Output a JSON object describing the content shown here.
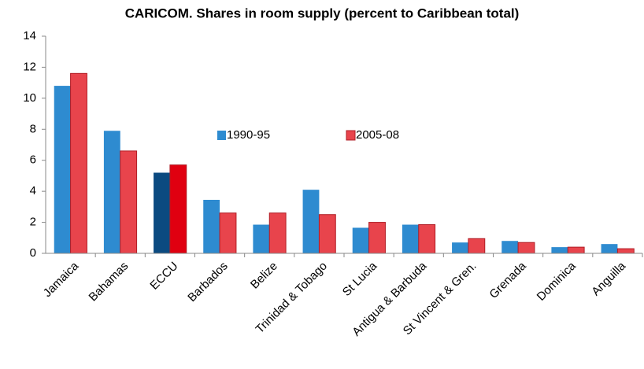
{
  "chart_data": {
    "type": "bar",
    "title": "CARICOM. Shares in room supply (percent to Caribbean total)",
    "categories": [
      "Jamaica",
      "Bahamas",
      "ECCU",
      "Barbados",
      "Belize",
      "Trinidad & Tobago",
      "St Lucia",
      "Antigua & Barbuda",
      "St Vincent & Gren.",
      "Grenada",
      "Dominica",
      "Anguilla"
    ],
    "series": [
      {
        "name": "1990-95",
        "color": "#2e8bd0",
        "point_colors": [
          "#2e8bd0",
          "#2e8bd0",
          "#0b4a80",
          "#2e8bd0",
          "#2e8bd0",
          "#2e8bd0",
          "#2e8bd0",
          "#2e8bd0",
          "#2e8bd0",
          "#2e8bd0",
          "#2e8bd0",
          "#2e8bd0"
        ],
        "values": [
          10.8,
          7.9,
          5.2,
          3.45,
          1.85,
          4.1,
          1.65,
          1.85,
          0.7,
          0.8,
          0.4,
          0.6
        ]
      },
      {
        "name": "2005-08",
        "color": "#e8444c",
        "point_colors": [
          "#e8444c",
          "#e8444c",
          "#e00010",
          "#e8444c",
          "#e8444c",
          "#e8444c",
          "#e8444c",
          "#e8444c",
          "#e8444c",
          "#e8444c",
          "#e8444c",
          "#e8444c"
        ],
        "values": [
          11.6,
          6.6,
          5.7,
          2.6,
          2.6,
          2.5,
          2.0,
          1.85,
          0.95,
          0.7,
          0.4,
          0.3
        ]
      }
    ],
    "ylim": [
      0,
      14
    ],
    "yticks": [
      0,
      2,
      4,
      6,
      8,
      10,
      12,
      14
    ],
    "grid": false
  }
}
